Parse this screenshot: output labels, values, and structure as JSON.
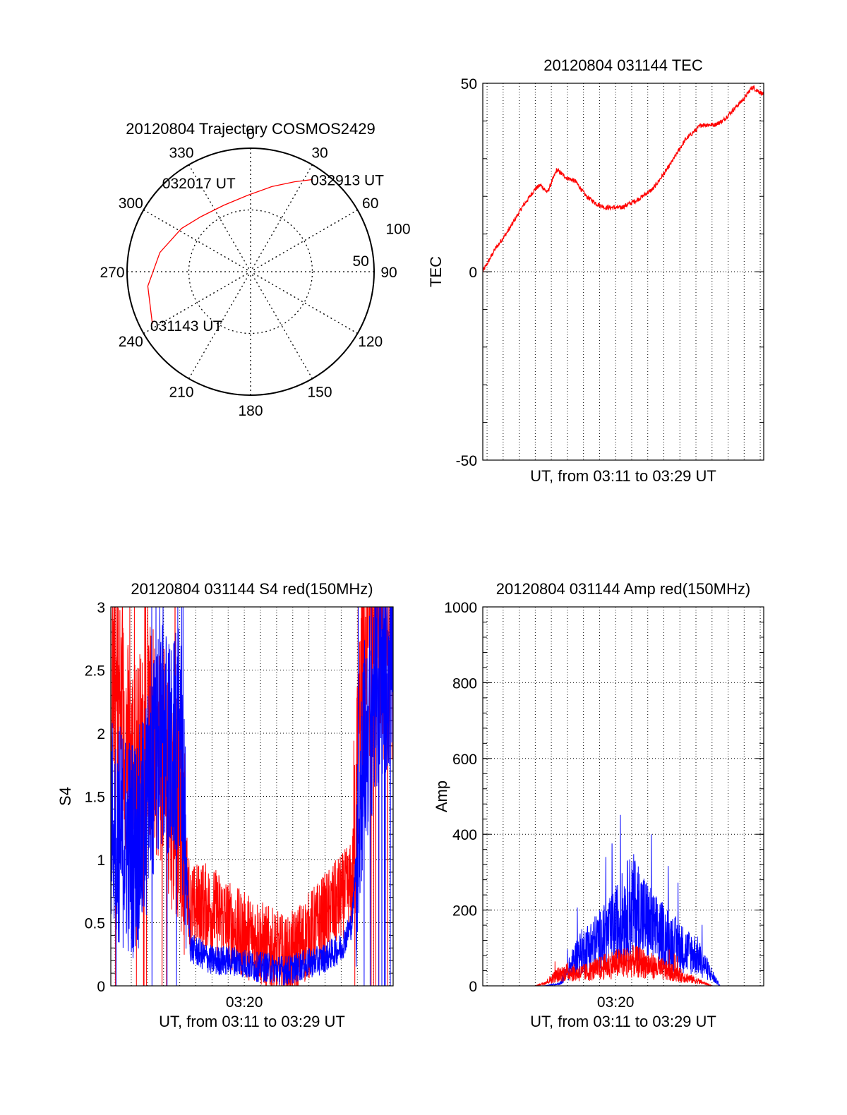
{
  "chart_data": [
    {
      "type": "polar",
      "title": "20120804 Trajectory COSMOS2429",
      "angle_labels": [
        "0",
        "30",
        "60",
        "90",
        "120",
        "150",
        "180",
        "210",
        "240",
        "270",
        "300",
        "330"
      ],
      "radius_labels": [
        "50",
        "100"
      ],
      "rlim": [
        0,
        100
      ],
      "grid": true,
      "series": [
        {
          "color": "#ff0000",
          "points": [
            {
              "az": 242,
              "zen": 90,
              "label": "031143 UT"
            },
            {
              "az": 262,
              "zen": 84
            },
            {
              "az": 282,
              "zen": 75
            },
            {
              "az": 302,
              "zen": 66
            },
            {
              "az": 318,
              "zen": 60,
              "label": "032017 UT"
            },
            {
              "az": 338,
              "zen": 58
            },
            {
              "az": 358,
              "zen": 62
            },
            {
              "az": 14,
              "zen": 71
            },
            {
              "az": 26,
              "zen": 81
            },
            {
              "az": 34,
              "zen": 90,
              "label": "032913 UT"
            }
          ]
        }
      ]
    },
    {
      "type": "line",
      "title": "20120804 031144 TEC",
      "xlabel": "UT, from 03:11 to 03:29 UT",
      "ylabel": "TEC",
      "xlim": [
        "03:11:44",
        "03:29:13"
      ],
      "ylim": [
        -50,
        50
      ],
      "yticks": [
        "-50",
        "0",
        "50"
      ],
      "xticks": [],
      "grid": true,
      "series": [
        {
          "color": "#ff0000",
          "x": [
            "03:11:44",
            "03:12:30",
            "03:13:20",
            "03:14:10",
            "03:15:00",
            "03:15:20",
            "03:15:45",
            "03:16:20",
            "03:16:55",
            "03:17:30",
            "03:18:10",
            "03:18:50",
            "03:19:20",
            "03:20:20",
            "03:21:20",
            "03:22:20",
            "03:23:20",
            "03:24:20",
            "03:25:20",
            "03:26:10",
            "03:26:40",
            "03:27:20",
            "03:28:00",
            "03:28:30",
            "03:29:13"
          ],
          "values": [
            0,
            6,
            11,
            17,
            22,
            23,
            21,
            27,
            25,
            24,
            20,
            18,
            17,
            17,
            19,
            22,
            28,
            35,
            39,
            39,
            40,
            43,
            46,
            49,
            47
          ]
        }
      ]
    },
    {
      "type": "line",
      "title": "20120804 031144 S4 red(150MHz)",
      "xlabel": "UT, from 03:11 to 03:29 UT",
      "ylabel": "S4",
      "xlim": [
        "03:11:44",
        "03:29:13"
      ],
      "ylim": [
        0,
        3
      ],
      "yticks": [
        "0",
        "0.5",
        "1",
        "1.5",
        "2",
        "2.5",
        "3"
      ],
      "xticks": [
        "03:20"
      ],
      "grid": true,
      "series": [
        {
          "color": "#ff0000",
          "x": [
            "03:11:44",
            "03:12:20",
            "03:13:00",
            "03:13:40",
            "03:14:20",
            "03:15:00",
            "03:15:30",
            "03:16:00",
            "03:16:40",
            "03:17:20",
            "03:18:00",
            "03:18:40",
            "03:19:20",
            "03:20:00",
            "03:20:40",
            "03:21:20",
            "03:22:00",
            "03:22:40",
            "03:23:20",
            "03:24:00",
            "03:24:40",
            "03:25:20",
            "03:26:00",
            "03:26:40",
            "03:27:20",
            "03:28:00",
            "03:28:40",
            "03:29:13"
          ],
          "values": [
            2.4,
            2.2,
            1.7,
            1.8,
            2.0,
            1.8,
            1.5,
            1.4,
            0.6,
            0.65,
            0.6,
            0.55,
            0.45,
            0.4,
            0.38,
            0.3,
            0.25,
            0.2,
            0.3,
            0.4,
            0.5,
            0.6,
            0.7,
            0.8,
            2.5,
            2.8,
            2.6,
            2.7
          ]
        },
        {
          "color": "#0000ff",
          "x": [
            "03:11:44",
            "03:12:20",
            "03:13:00",
            "03:13:40",
            "03:14:20",
            "03:15:00",
            "03:15:30",
            "03:16:00",
            "03:16:40",
            "03:17:20",
            "03:18:00",
            "03:18:40",
            "03:19:20",
            "03:20:00",
            "03:20:40",
            "03:21:20",
            "03:22:00",
            "03:22:40",
            "03:23:20",
            "03:24:00",
            "03:24:40",
            "03:25:20",
            "03:26:00",
            "03:26:40",
            "03:27:20",
            "03:28:00",
            "03:28:40",
            "03:29:13"
          ],
          "values": [
            1.3,
            1.2,
            1.1,
            1.2,
            1.7,
            2.0,
            1.8,
            2.0,
            0.3,
            0.25,
            0.2,
            0.2,
            0.2,
            0.18,
            0.15,
            0.15,
            0.13,
            0.12,
            0.15,
            0.18,
            0.2,
            0.25,
            0.3,
            0.5,
            1.8,
            2.3,
            2.5,
            2.6
          ]
        }
      ]
    },
    {
      "type": "line",
      "title": "20120804 031144 Amp red(150MHz)",
      "xlabel": "UT, from 03:11 to 03:29 UT",
      "ylabel": "Amp",
      "xlim": [
        "03:11:44",
        "03:29:13"
      ],
      "ylim": [
        0,
        1000
      ],
      "yticks": [
        "0",
        "200",
        "400",
        "600",
        "800",
        "1000"
      ],
      "xticks": [
        "03:20"
      ],
      "grid": true,
      "series": [
        {
          "color": "#0000ff",
          "x": [
            "03:11:44",
            "03:14:00",
            "03:15:30",
            "03:16:30",
            "03:17:00",
            "03:17:40",
            "03:18:20",
            "03:19:00",
            "03:19:40",
            "03:20:20",
            "03:21:00",
            "03:21:40",
            "03:22:20",
            "03:23:00",
            "03:23:40",
            "03:24:20",
            "03:25:00",
            "03:25:30",
            "03:26:00",
            "03:26:30",
            "03:29:13"
          ],
          "values": [
            0,
            0,
            0,
            5,
            40,
            90,
            110,
            130,
            150,
            190,
            230,
            200,
            160,
            140,
            120,
            100,
            90,
            60,
            30,
            0,
            0
          ]
        },
        {
          "color": "#ff0000",
          "x": [
            "03:11:44",
            "03:15:00",
            "03:15:40",
            "03:16:20",
            "03:17:00",
            "03:17:40",
            "03:18:20",
            "03:19:00",
            "03:19:40",
            "03:20:20",
            "03:21:00",
            "03:21:40",
            "03:22:20",
            "03:23:00",
            "03:23:40",
            "03:24:20",
            "03:25:00",
            "03:25:30",
            "03:26:00",
            "03:29:13"
          ],
          "values": [
            0,
            0,
            10,
            30,
            40,
            35,
            40,
            50,
            60,
            65,
            70,
            65,
            55,
            45,
            35,
            25,
            15,
            8,
            0,
            0
          ]
        }
      ]
    }
  ]
}
